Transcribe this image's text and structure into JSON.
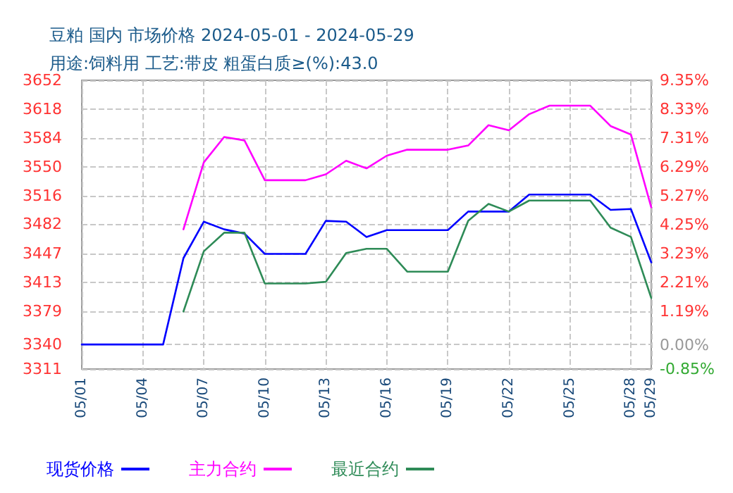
{
  "chart_data": {
    "type": "line",
    "title": "豆粕 国内 市场价格 2024-05-01 - 2024-05-29",
    "subtitle": "用途:饲料用 工艺:带皮 粗蛋白质≥(%):43.0",
    "categories": [
      "05/01",
      null,
      null,
      "05/04",
      null,
      null,
      "05/07",
      null,
      null,
      "05/10",
      null,
      null,
      "05/13",
      null,
      null,
      "05/16",
      null,
      null,
      "05/19",
      null,
      null,
      "05/22",
      null,
      null,
      "05/25",
      null,
      null,
      "05/28",
      "05/29"
    ],
    "series": [
      {
        "name": "现货价格",
        "color": "#0000ff",
        "values": [
          3340,
          3340,
          3340,
          3340,
          3340,
          3442,
          3485,
          3476,
          3471,
          3447,
          3447,
          3447,
          3486,
          3485,
          3467,
          3475,
          3475,
          3475,
          3475,
          3497,
          3497,
          3497,
          3517,
          3517,
          3517,
          3517,
          3499,
          3500,
          3437
        ]
      },
      {
        "name": "主力合约",
        "color": "#ff00ff",
        "values": [
          null,
          null,
          null,
          null,
          null,
          3476,
          3555,
          3585,
          3581,
          3534,
          3534,
          3534,
          3541,
          3557,
          3548,
          3563,
          3570,
          3570,
          3570,
          3575,
          3599,
          3593,
          3612,
          3622,
          3622,
          3622,
          3598,
          3588,
          3502
        ]
      },
      {
        "name": "最近合约",
        "color": "#2e8b57",
        "values": [
          null,
          null,
          null,
          null,
          null,
          3379,
          3450,
          3472,
          3472,
          3412,
          3412,
          3412,
          3414,
          3448,
          3453,
          3453,
          3426,
          3426,
          3426,
          3486,
          3506,
          3497,
          3510,
          3510,
          3510,
          3510,
          3478,
          3467,
          3395
        ]
      }
    ],
    "ylim": [
      3311,
      3652
    ],
    "yticks": [
      3311,
      3340,
      3379,
      3413,
      3447,
      3482,
      3516,
      3550,
      3584,
      3618,
      3652
    ],
    "y2lim": [
      -0.85,
      9.35
    ],
    "y2ticks": [
      {
        "value": -0.85,
        "label": "-0.85%"
      },
      {
        "value": 0,
        "label": "0.00%"
      },
      {
        "value": 1.19,
        "label": "1.19%"
      },
      {
        "value": 2.21,
        "label": "2.21%"
      },
      {
        "value": 3.23,
        "label": "3.23%"
      },
      {
        "value": 4.25,
        "label": "4.25%"
      },
      {
        "value": 5.27,
        "label": "5.27%"
      },
      {
        "value": 6.29,
        "label": "6.29%"
      },
      {
        "value": 7.31,
        "label": "7.31%"
      },
      {
        "value": 8.33,
        "label": "8.33%"
      },
      {
        "value": 9.35,
        "label": "9.35%"
      }
    ],
    "grid": true,
    "legend": "bottom",
    "marker": "none",
    "line_style": "solid"
  }
}
